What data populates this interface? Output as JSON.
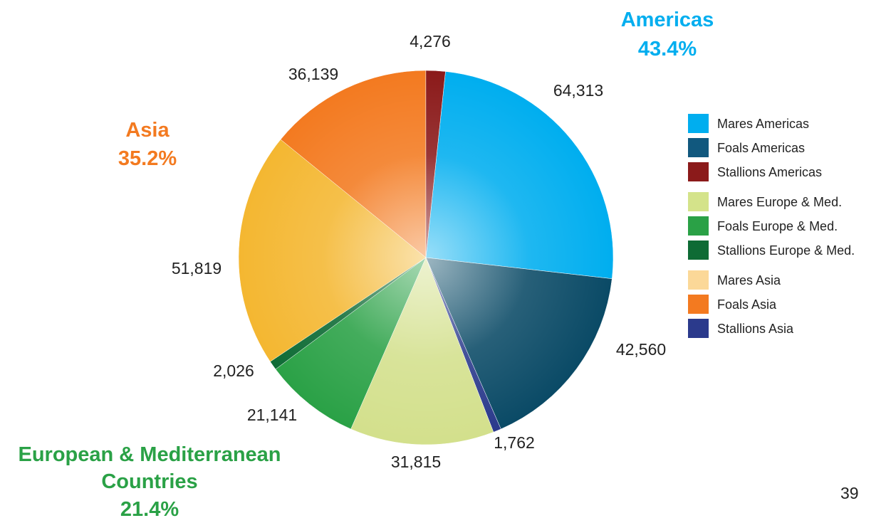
{
  "page": {
    "number": "39"
  },
  "chart_data": {
    "type": "pie",
    "slices": [
      {
        "name": "Mares Americas",
        "value": 64313,
        "label": "64,313",
        "color": "#00aeef"
      },
      {
        "name": "Foals Americas",
        "value": 42560,
        "label": "42,560",
        "color": "#0a4a66"
      },
      {
        "name": "Stallions Asia",
        "value": 1762,
        "label": "1,762",
        "color": "#2b3a8c"
      },
      {
        "name": "Mares Europe & Med.",
        "value": 31815,
        "label": "31,815",
        "color": "#d3e08c"
      },
      {
        "name": "Foals Europe & Med.",
        "value": 21141,
        "label": "21,141",
        "color": "#2aa146"
      },
      {
        "name": "Stallions Europe & Med.",
        "value": 2026,
        "label": "2,026",
        "color": "#0e6b35"
      },
      {
        "name": "Mares Asia",
        "value": 51819,
        "label": "51,819",
        "color": "#f4b731"
      },
      {
        "name": "Foals Asia",
        "value": 36139,
        "label": "36,139",
        "color": "#f37a20"
      },
      {
        "name": "Stallions Americas",
        "value": 4276,
        "label": "4,276",
        "color": "#8b1a1a"
      }
    ],
    "legend": {
      "placement": "right",
      "groups": [
        [
          {
            "label": "Mares Americas",
            "color": "#00aeef"
          },
          {
            "label": "Foals Americas",
            "color": "#11587e"
          },
          {
            "label": "Stallions Americas",
            "color": "#8b1a1a"
          }
        ],
        [
          {
            "label": "Mares Europe & Med.",
            "color": "#d4e38a"
          },
          {
            "label": "Foals Europe & Med.",
            "color": "#2aa146"
          },
          {
            "label": "Stallions Europe & Med.",
            "color": "#0e6b35"
          }
        ],
        [
          {
            "label": "Mares Asia",
            "color": "#fbd898"
          },
          {
            "label": "Foals Asia",
            "color": "#f37a20"
          },
          {
            "label": "Stallions Asia",
            "color": "#2b3a8c"
          }
        ]
      ]
    },
    "regions": [
      {
        "name": "Americas",
        "percent": "43.4%",
        "color": "#00aeef"
      },
      {
        "name": "Asia",
        "percent": "35.2%",
        "color": "#f37a20"
      },
      {
        "name": "European & Mediterranean\nCountries",
        "percent": "21.4%",
        "color": "#2aa146"
      }
    ]
  }
}
